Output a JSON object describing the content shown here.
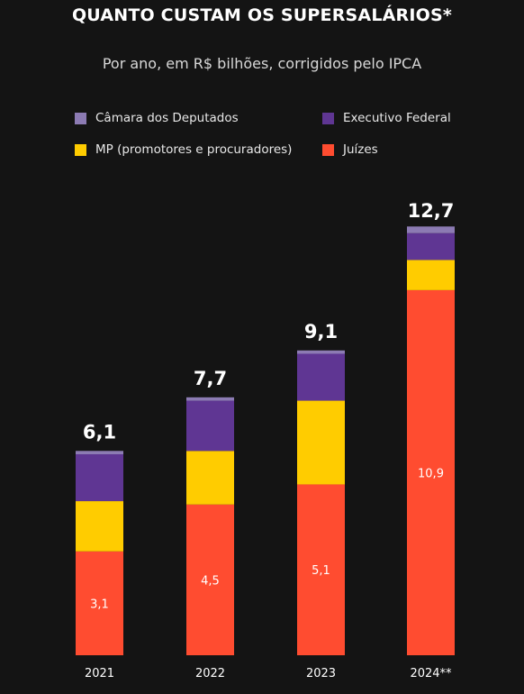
{
  "title": "QUANTO CUSTAM OS SUPERSALÁRIOS*",
  "subtitle": "Por ano, em R$ bilhões, corrigidos pelo IPCA",
  "legend": [
    {
      "label": "Câmara dos Deputados",
      "color": "#8c7bb3"
    },
    {
      "label": "Executivo Federal",
      "color": "#5f3693"
    },
    {
      "label": "MP (promotores e procuradores)",
      "color": "#ffcc00"
    },
    {
      "label": "Juízes",
      "color": "#ff4c30"
    }
  ],
  "chart_data": {
    "type": "bar",
    "stacked": true,
    "categories": [
      "2021",
      "2022",
      "2023",
      "2024**"
    ],
    "totals": [
      6.1,
      7.7,
      9.1,
      12.7
    ],
    "total_labels": [
      "6,1",
      "7,7",
      "9,1",
      "12,7"
    ],
    "series": [
      {
        "name": "Juízes",
        "color": "#ff4c30",
        "values": [
          3.1,
          4.5,
          5.1,
          10.9
        ],
        "labels": [
          "3,1",
          "4,5",
          "5,1",
          "10,9"
        ]
      },
      {
        "name": "MP (promotores e procuradores)",
        "color": "#ffcc00",
        "values": [
          1.5,
          1.6,
          2.5,
          0.9
        ]
      },
      {
        "name": "Executivo Federal",
        "color": "#5f3693",
        "values": [
          1.4,
          1.5,
          1.4,
          0.8
        ]
      },
      {
        "name": "Câmara dos Deputados",
        "color": "#8c7bb3",
        "values": [
          0.1,
          0.1,
          0.1,
          0.2
        ]
      }
    ],
    "ylim": [
      0,
      12.7
    ],
    "grid": false,
    "legend_position": "top"
  }
}
